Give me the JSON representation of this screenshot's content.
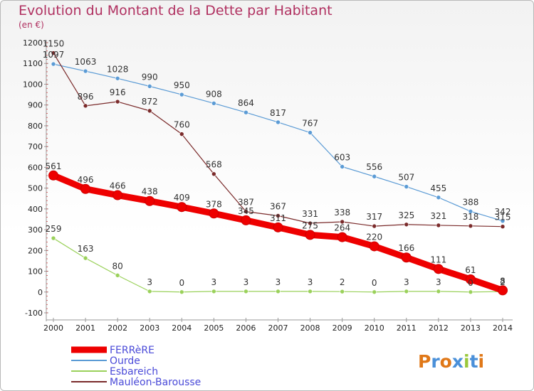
{
  "title": "Evolution du Montant de la Dette par Habitant",
  "unit_label": "(en €)",
  "logo": {
    "letters": [
      {
        "ch": "P",
        "color": "#e07818"
      },
      {
        "ch": "r",
        "color": "#4a90d9"
      },
      {
        "ch": "o",
        "color": "#e07818"
      },
      {
        "ch": "x",
        "color": "#4a90d9"
      },
      {
        "ch": "i",
        "color": "#9ac83c"
      },
      {
        "ch": "t",
        "color": "#4a90d9"
      },
      {
        "ch": "i",
        "color": "#e07818"
      }
    ]
  },
  "chart_data": {
    "type": "line",
    "title": "Evolution du Montant de la Dette par Habitant",
    "ylabel": "(en €)",
    "xlabel": "",
    "x": [
      "2000",
      "2001",
      "2002",
      "2003",
      "2004",
      "2005",
      "2006",
      "2007",
      "2008",
      "2009",
      "2010",
      "2011",
      "2012",
      "2013",
      "2014"
    ],
    "yticks": [
      "-100",
      "0",
      "100",
      "200",
      "300",
      "400",
      "500",
      "600",
      "700",
      "800",
      "900",
      "1000",
      "1100",
      "1200"
    ],
    "ylim": [
      -100,
      1200
    ],
    "grid": false,
    "legend_position": "bottom-left",
    "series": [
      {
        "name": "FERRèRE",
        "color": "#ee0000",
        "width": 9,
        "values": [
          561,
          496,
          466,
          438,
          409,
          378,
          345,
          311,
          275,
          264,
          220,
          166,
          111,
          61,
          8
        ],
        "labels": [
          "561",
          "496",
          "466",
          "438",
          "409",
          "378",
          "345",
          "311",
          "275",
          "264",
          "220",
          "166",
          "111",
          "61",
          "8"
        ]
      },
      {
        "name": "Ourde",
        "color": "#5b9bd5",
        "width": 1.2,
        "values": [
          1097,
          1063,
          1028,
          990,
          950,
          908,
          864,
          817,
          767,
          603,
          556,
          507,
          455,
          388,
          342
        ],
        "labels": [
          "1097",
          "1063",
          "1028",
          "990",
          "950",
          "908",
          "864",
          "817",
          "767",
          "603",
          "556",
          "507",
          "455",
          "388",
          "342"
        ]
      },
      {
        "name": "Esbareich",
        "color": "#9ad15a",
        "width": 1.2,
        "values": [
          259,
          163,
          80,
          3,
          0,
          3,
          3,
          3,
          3,
          2,
          0,
          3,
          3,
          0,
          2
        ],
        "labels": [
          "259",
          "163",
          "80",
          "3",
          "0",
          "3",
          "3",
          "3",
          "3",
          "2",
          "0",
          "3",
          "3",
          "0",
          "2"
        ]
      },
      {
        "name": "Mauléon-Barousse",
        "color": "#7a2a2a",
        "width": 1.2,
        "values": [
          1150,
          896,
          916,
          872,
          760,
          568,
          387,
          367,
          331,
          338,
          317,
          325,
          321,
          318,
          315
        ],
        "labels": [
          "1150",
          "896",
          "916",
          "872",
          "760",
          "568",
          "387",
          "367",
          "331",
          "338",
          "317",
          "325",
          "321",
          "318",
          "315"
        ]
      }
    ]
  }
}
